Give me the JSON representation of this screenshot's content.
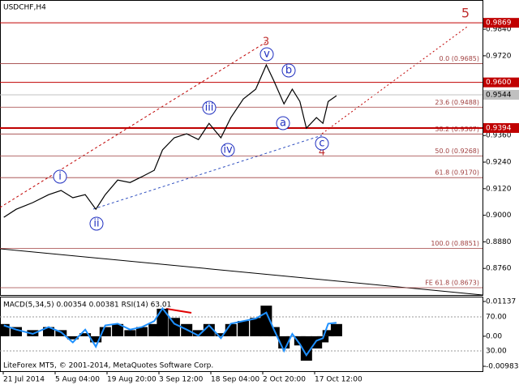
{
  "chart_data": [
    {
      "type": "line",
      "title": "USDCHF,H4",
      "x": [
        1,
        22,
        50,
        77,
        98,
        118,
        139,
        157,
        173,
        194,
        215,
        235,
        256,
        270,
        290,
        311,
        331,
        349,
        369,
        386,
        407,
        428,
        446,
        459,
        476,
        490,
        503,
        514,
        531,
        542,
        551,
        565
      ],
      "series": [
        {
          "name": "USDCHF",
          "color": "#000000",
          "values": [
            0.8991,
            0.9027,
            0.9057,
            0.9093,
            0.9112,
            0.9079,
            0.9093,
            0.9027,
            0.9093,
            0.9159,
            0.9148,
            0.9174,
            0.9203,
            0.9295,
            0.935,
            0.9368,
            0.9342,
            0.9415,
            0.935,
            0.9441,
            0.9525,
            0.9569,
            0.9679,
            0.9606,
            0.9503,
            0.9569,
            0.9514,
            0.9393,
            0.9441,
            0.9415,
            0.9514,
            0.954
          ]
        }
      ],
      "xlim": [
        -5.5,
        812.6
      ],
      "ylim": [
        0.864,
        0.9972
      ],
      "yticks": [
        {
          "value": 0.984,
          "label": "0.9840"
        },
        {
          "value": 0.972,
          "label": "0.9720"
        },
        {
          "value": 0.936,
          "label": "0.9360"
        },
        {
          "value": 0.924,
          "label": "0.9240"
        },
        {
          "value": 0.912,
          "label": "0.9120"
        },
        {
          "value": 0.9,
          "label": "0.9000"
        },
        {
          "value": 0.888,
          "label": "0.8880"
        },
        {
          "value": 0.876,
          "label": "0.8760"
        }
      ],
      "price_levels": [
        {
          "value": 0.9869,
          "label": "0.9869",
          "color": "#c00000"
        },
        {
          "value": 0.96,
          "label": "0.9600",
          "color": "#c00000"
        },
        {
          "value": 0.9544,
          "label": "0.9544",
          "color": "#c0c0c0"
        },
        {
          "value": 0.9394,
          "label": "0.9394",
          "color": "#c00000"
        }
      ],
      "fib_levels": [
        {
          "value": 0.9685,
          "label": "0.0 (0.9685)"
        },
        {
          "value": 0.9488,
          "label": "23.6 (0.9488)"
        },
        {
          "value": 0.9367,
          "label": "38.2 (0.9367)"
        },
        {
          "value": 0.9268,
          "label": "50.0 (0.9268)"
        },
        {
          "value": 0.917,
          "label": "61.8 (0.9170)"
        },
        {
          "value": 0.8851,
          "label": "100.0 (0.8851)"
        },
        {
          "value": 0.8673,
          "label": "FE 61.8 (0.8673)"
        }
      ],
      "fib_color": "#a04040",
      "annotations": [
        "5",
        "3",
        "4",
        "i",
        "ii",
        "iii",
        "iv",
        "v",
        "a",
        "b",
        "c"
      ]
    },
    {
      "type": "bar",
      "title": "MACD(5,34,5) 0.00354 0.00381 RSI(14) 63.01",
      "x": [
        1,
        22,
        50,
        77,
        98,
        118,
        139,
        157,
        173,
        194,
        215,
        235,
        256,
        270,
        290,
        311,
        331,
        349,
        369,
        386,
        407,
        428,
        446,
        459,
        476,
        490,
        503,
        514,
        531,
        542,
        551,
        565
      ],
      "series": [
        {
          "name": "MACD",
          "color": "#000000",
          "values": [
            0.004,
            0.003,
            0.002,
            0.003,
            0.002,
            -0.001,
            0.001,
            -0.002,
            0.003,
            0.004,
            0.002,
            0.003,
            0.004,
            0.009,
            0.006,
            0.004,
            0.002,
            0.004,
            0.001,
            0.004,
            0.005,
            0.006,
            0.01,
            0.003,
            -0.004,
            0,
            -0.003,
            -0.008,
            -0.004,
            -0.002,
            0.002,
            0.004
          ]
        },
        {
          "name": "RSI(14)",
          "color": "#1e90ff",
          "axis": "y2",
          "values": [
            60,
            55,
            50,
            58,
            52,
            40,
            55,
            35,
            60,
            62,
            55,
            58,
            65,
            80,
            62,
            55,
            48,
            60,
            45,
            62,
            65,
            68,
            75,
            55,
            30,
            50,
            38,
            25,
            42,
            45,
            62,
            63
          ]
        }
      ],
      "xlim": [
        -5.5,
        812.6
      ],
      "ylim": [
        -0.01142,
        0.01296
      ],
      "yticks": [
        0.01137,
        {
          "value": 0,
          "label": "0.00"
        },
        -0.00983
      ],
      "y2lim": [
        6.2,
        93.8
      ],
      "y2ticks": [
        {
          "value": 70,
          "label": "70.00"
        },
        {
          "value": 30,
          "label": "30.00"
        }
      ],
      "xticks": [
        {
          "value": 0,
          "label": "21 Jul 2014"
        },
        {
          "value": 88,
          "label": "5 Aug 04:00"
        },
        {
          "value": 176,
          "label": "19 Aug 20:00"
        },
        {
          "value": 264,
          "label": "3 Sep 12:00"
        },
        {
          "value": 352,
          "label": "18 Sep 04:00"
        },
        {
          "value": 440,
          "label": "2 Oct 20:00"
        },
        {
          "value": 528,
          "label": "17 Oct 12:00"
        }
      ],
      "footer": "LiteForex MT5, © 2001-2014, MetaQuotes Software Corp."
    }
  ]
}
